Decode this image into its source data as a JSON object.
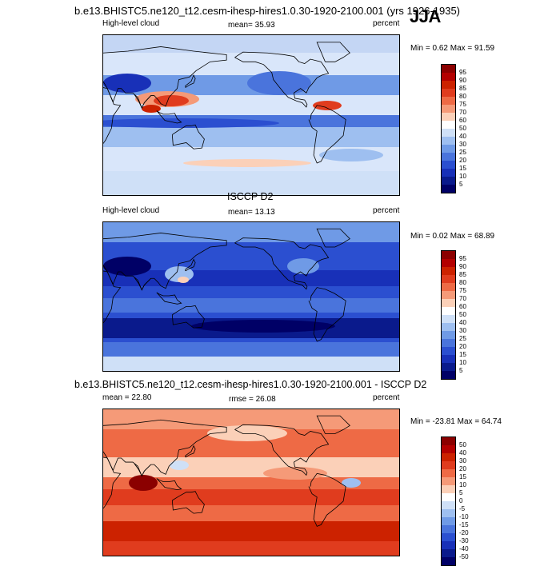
{
  "header": {
    "title": "b.e13.BHISTC5.ne120_t12.cesm-ihesp-hires1.0.30-1920-2100.001 (yrs 1926-1935)",
    "season": "JJA"
  },
  "panel1": {
    "left": "High-level cloud",
    "center": "mean=  35.93",
    "right": "percent",
    "minmax": "Min =   0.62 Max =  91.59",
    "levels": [
      "95",
      "90",
      "85",
      "80",
      "75",
      "70",
      "60",
      "50",
      "40",
      "30",
      "25",
      "20",
      "15",
      "10",
      "5"
    ]
  },
  "panel2": {
    "heading": "ISCCP D2",
    "left": "High-level cloud",
    "center": "mean=  13.13",
    "right": "percent",
    "minmax": "Min =   0.02 Max =  68.89",
    "levels": [
      "95",
      "90",
      "85",
      "80",
      "75",
      "70",
      "60",
      "50",
      "40",
      "30",
      "25",
      "20",
      "15",
      "10",
      "5"
    ]
  },
  "panel3": {
    "heading": "b.e13.BHISTC5.ne120_t12.cesm-ihesp-hires1.0.30-1920-2100.001 - ISCCP D2",
    "left": "mean =  22.80",
    "center": "rmse =  26.08",
    "right": "percent",
    "minmax": "Min = -23.81 Max =  64.74",
    "levels": [
      "50",
      "40",
      "30",
      "20",
      "15",
      "10",
      "5",
      "0",
      "-5",
      "-10",
      "-15",
      "-20",
      "-30",
      "-40",
      "-50"
    ]
  },
  "colors": {
    "abs_scale": [
      "#8b0000",
      "#b30000",
      "#cc2200",
      "#e03c1e",
      "#ee6a45",
      "#f59a78",
      "#fbd0b8",
      "#ffffff",
      "#cfe0f7",
      "#9ebff0",
      "#6f9ae6",
      "#4a74dc",
      "#2b4fd0",
      "#1830b8",
      "#0a1a8c",
      "#000066"
    ],
    "diff_scale": [
      "#8b0000",
      "#b30000",
      "#cc2200",
      "#e03c1e",
      "#ee6a45",
      "#f59a78",
      "#fbd0b8",
      "#ffffff",
      "#cfe0f7",
      "#9ebff0",
      "#6f9ae6",
      "#4a74dc",
      "#2b4fd0",
      "#1830b8",
      "#0a1a8c",
      "#000066"
    ],
    "coast": "#000000"
  },
  "chart_data": [
    {
      "type": "heatmap",
      "title": "b.e13.BHISTC5.ne120_t12.cesm-ihesp-hires1.0.30-1920-2100.001 (yrs 1926-1935)",
      "variable": "High-level cloud",
      "units": "percent",
      "mean": 35.93,
      "min": 0.62,
      "max": 91.59,
      "levels": [
        5,
        10,
        15,
        20,
        25,
        30,
        40,
        50,
        60,
        70,
        75,
        80,
        85,
        90,
        95
      ]
    },
    {
      "type": "heatmap",
      "title": "ISCCP D2",
      "variable": "High-level cloud",
      "units": "percent",
      "mean": 13.13,
      "min": 0.02,
      "max": 68.89,
      "levels": [
        5,
        10,
        15,
        20,
        25,
        30,
        40,
        50,
        60,
        70,
        75,
        80,
        85,
        90,
        95
      ]
    },
    {
      "type": "heatmap",
      "title": "b.e13.BHISTC5.ne120_t12.cesm-ihesp-hires1.0.30-1920-2100.001 - ISCCP D2",
      "units": "percent",
      "mean": 22.8,
      "rmse": 26.08,
      "min": -23.81,
      "max": 64.74,
      "levels": [
        -50,
        -40,
        -30,
        -20,
        -15,
        -10,
        -5,
        0,
        5,
        10,
        15,
        20,
        30,
        40,
        50
      ]
    }
  ]
}
